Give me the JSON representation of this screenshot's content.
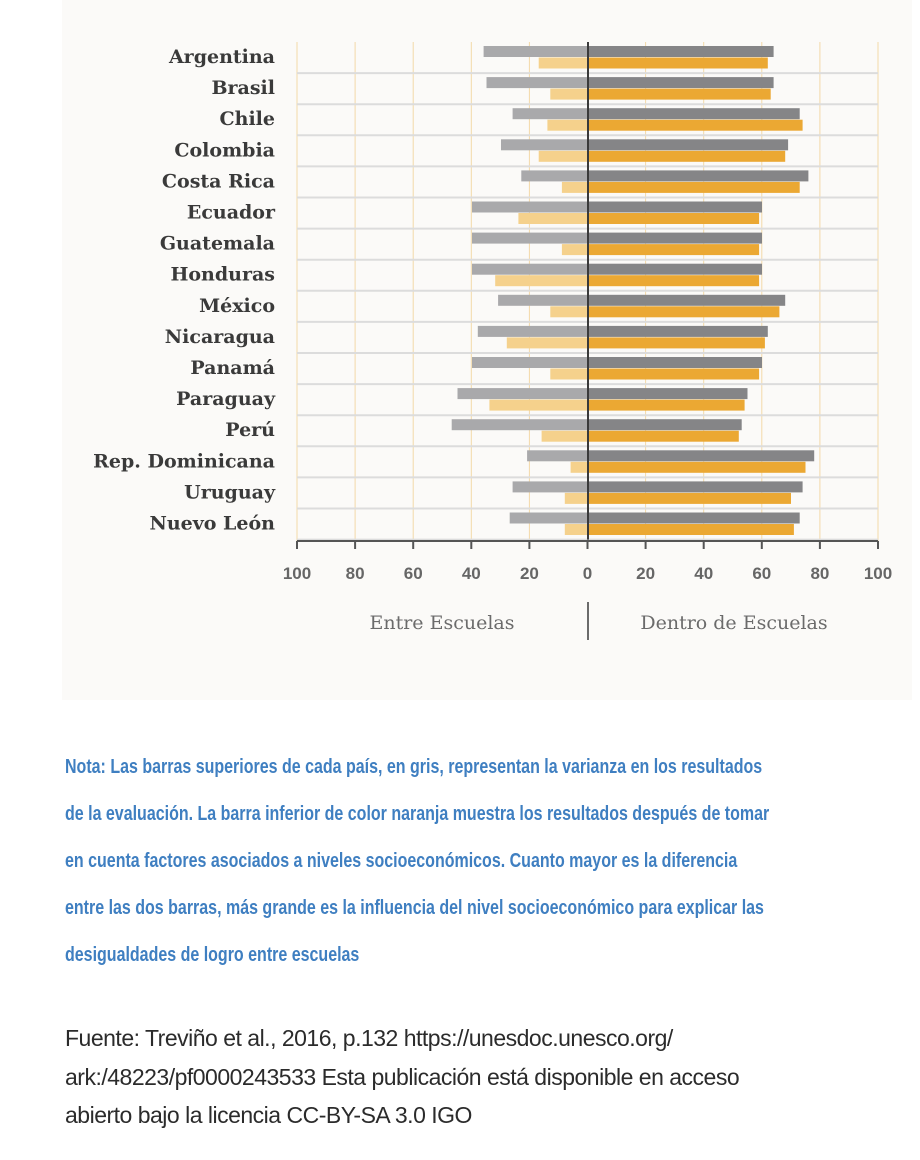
{
  "chart_data": {
    "type": "bar",
    "orientation": "horizontal-diverging",
    "categories": [
      "Argentina",
      "Brasil",
      "Chile",
      "Colombia",
      "Costa Rica",
      "Ecuador",
      "Guatemala",
      "Honduras",
      "México",
      "Nicaragua",
      "Panamá",
      "Paraguay",
      "Perú",
      "Rep. Dominicana",
      "Uruguay",
      "Nuevo León"
    ],
    "series": [
      {
        "side": "left",
        "label": "Entre Escuelas",
        "kind": "gris",
        "color": "#a9a9ab",
        "values": [
          36,
          35,
          26,
          30,
          23,
          40,
          40,
          40,
          31,
          38,
          40,
          45,
          47,
          21,
          26,
          27
        ]
      },
      {
        "side": "left",
        "label": "Entre Escuelas",
        "kind": "naranja",
        "color": "#f5d18c",
        "values": [
          17,
          13,
          14,
          17,
          9,
          24,
          9,
          32,
          13,
          28,
          13,
          34,
          16,
          6,
          8,
          8
        ]
      },
      {
        "side": "right",
        "label": "Dentro de Escuelas",
        "kind": "gris",
        "color": "#858587",
        "values": [
          64,
          64,
          73,
          69,
          76,
          60,
          60,
          60,
          68,
          62,
          60,
          55,
          53,
          78,
          74,
          73
        ]
      },
      {
        "side": "right",
        "label": "Dentro de Escuelas",
        "kind": "naranja",
        "color": "#eba833",
        "values": [
          62,
          63,
          74,
          68,
          73,
          59,
          59,
          59,
          66,
          61,
          59,
          54,
          52,
          75,
          70,
          71
        ]
      }
    ],
    "xticks": [
      "100",
      "80",
      "60",
      "40",
      "20",
      "0",
      "20",
      "40",
      "60",
      "80",
      "100"
    ],
    "xlim": [
      -100,
      100
    ],
    "left_label": "Entre Escuelas",
    "right_label": "Dentro de Escuelas",
    "grid": true,
    "grid_color": "#f3d9a8"
  },
  "note_lines": [
    "Nota: Las barras superiores de cada país, en gris, representan la varianza en los resultados",
    "de la evaluación. La barra inferior de color naranja muestra los resultados después de tomar",
    "en cuenta factores asociados a niveles socioeconómicos. Cuanto mayor es la diferencia",
    "entre las dos barras, más grande es la influencia del nivel socioeconómico para explicar las",
    "desigualdades de logro entre escuelas"
  ],
  "source_lines": [
    "Fuente: Treviño et al., 2016, p.132 https://unesdoc.unesco.org/",
    "ark:/48223/pf0000243533  Esta publicación está disponible en acceso",
    "abierto bajo la licencia CC-BY-SA 3.0 IGO"
  ]
}
